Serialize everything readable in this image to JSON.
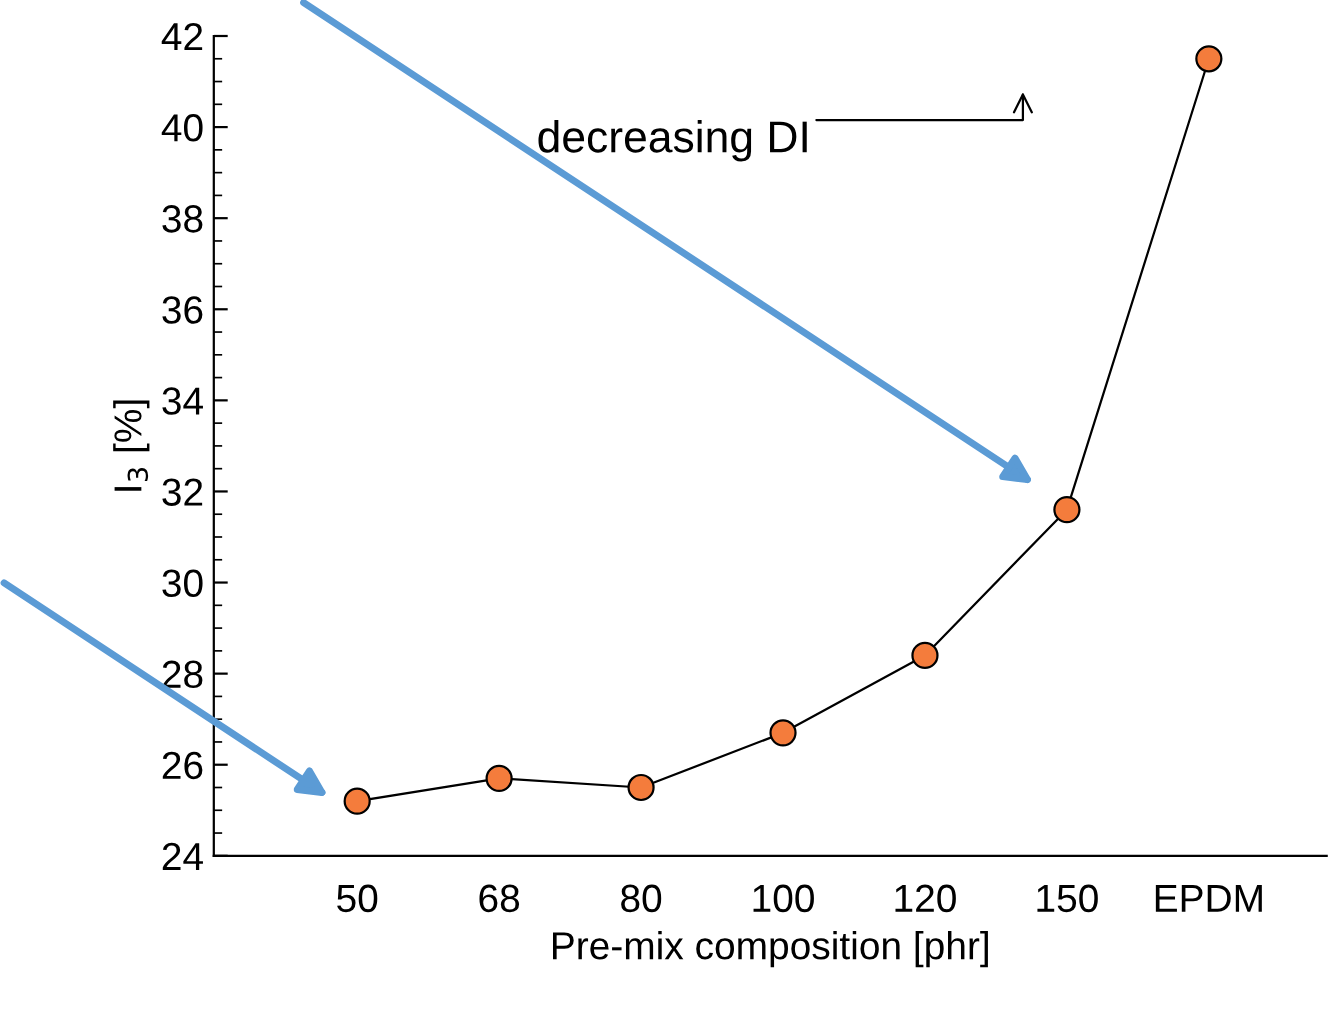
{
  "chart_data": {
    "type": "line",
    "xlabel": "Pre-mix composition [phr]",
    "ylabel": "I$_{3}$ [%]",
    "categories": [
      "50",
      "68",
      "80",
      "100",
      "120",
      "150",
      "EPDM"
    ],
    "series": [
      {
        "color": "#f47c3c",
        "values": [
          25.2,
          25.7,
          25.5,
          26.7,
          28.4,
          31.6,
          41.5
        ]
      }
    ],
    "ylim": [
      24,
      42
    ],
    "yticks": [
      24,
      26,
      28,
      30,
      32,
      34,
      36,
      38,
      40,
      42
    ],
    "marker": "circle",
    "line_style": "solid",
    "grid": false,
    "legend": false,
    "annotations": [
      "decreasing DI"
    ]
  }
}
